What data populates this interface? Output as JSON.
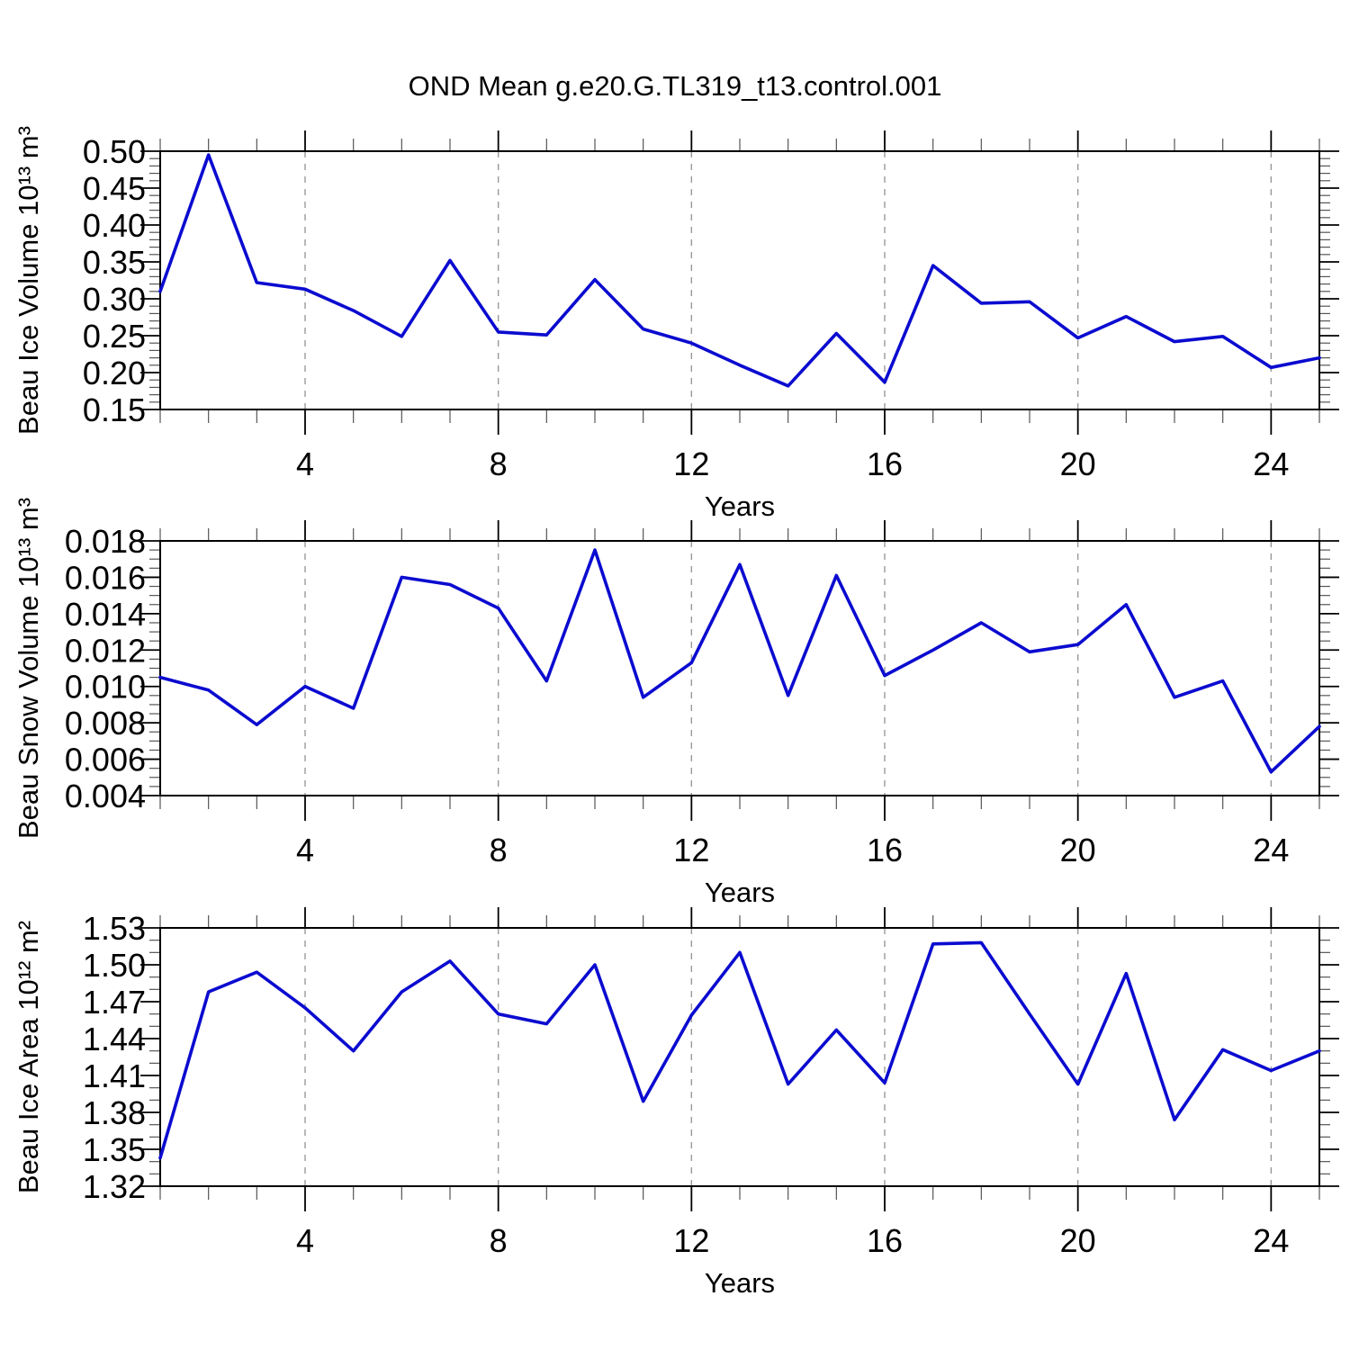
{
  "title": "OND Mean g.e20.G.TL319_t13.control.001",
  "chart_data": [
    {
      "type": "line",
      "title": "OND Mean g.e20.G.TL319_t13.control.001",
      "xlabel": "Years",
      "ylabel": "Beau Ice Volume 10¹³ m³",
      "x": [
        1,
        2,
        3,
        4,
        5,
        6,
        7,
        8,
        9,
        10,
        11,
        12,
        13,
        14,
        15,
        16,
        17,
        18,
        19,
        20,
        21,
        22,
        23,
        24,
        25
      ],
      "values": [
        0.31,
        0.495,
        0.322,
        0.313,
        0.284,
        0.249,
        0.352,
        0.255,
        0.251,
        0.326,
        0.259,
        0.24,
        0.21,
        0.182,
        0.253,
        0.187,
        0.345,
        0.294,
        0.296,
        0.247,
        0.276,
        0.242,
        0.249,
        0.207,
        0.22
      ],
      "xlim": [
        1,
        25
      ],
      "ylim": [
        0.15,
        0.5
      ],
      "xticks": [
        4,
        8,
        12,
        16,
        20,
        24
      ],
      "yticks": [
        "0.15",
        "0.20",
        "0.25",
        "0.30",
        "0.35",
        "0.40",
        "0.45",
        "0.50"
      ],
      "ymajor_step": 0.05,
      "yminor_step": 0.01,
      "ytick_decimals": 2,
      "grid": "vertical-dashed",
      "legend_position": "none",
      "line_color": "#0b0bd0"
    },
    {
      "type": "line",
      "title": "",
      "xlabel": "Years",
      "ylabel": "Beau Snow Volume 10¹³ m³",
      "x": [
        1,
        2,
        3,
        4,
        5,
        6,
        7,
        8,
        9,
        10,
        11,
        12,
        13,
        14,
        15,
        16,
        17,
        18,
        19,
        20,
        21,
        22,
        23,
        24,
        25
      ],
      "values": [
        0.0105,
        0.0098,
        0.0079,
        0.01,
        0.0088,
        0.016,
        0.0156,
        0.0143,
        0.0103,
        0.0175,
        0.0094,
        0.0113,
        0.0167,
        0.0095,
        0.0161,
        0.0106,
        0.012,
        0.0135,
        0.0119,
        0.0123,
        0.0145,
        0.0094,
        0.0103,
        0.0053,
        0.0078
      ],
      "xlim": [
        1,
        25
      ],
      "ylim": [
        0.004,
        0.018
      ],
      "xticks": [
        4,
        8,
        12,
        16,
        20,
        24
      ],
      "yticks": [
        "0.004",
        "0.006",
        "0.008",
        "0.010",
        "0.012",
        "0.014",
        "0.016",
        "0.018"
      ],
      "ymajor_step": 0.002,
      "yminor_step": 0.0005,
      "ytick_decimals": 3,
      "grid": "vertical-dashed",
      "legend_position": "none",
      "line_color": "#0b0bd0"
    },
    {
      "type": "line",
      "title": "",
      "xlabel": "Years",
      "ylabel": "Beau Ice Area 10¹² m²",
      "x": [
        1,
        2,
        3,
        4,
        5,
        6,
        7,
        8,
        9,
        10,
        11,
        12,
        13,
        14,
        15,
        16,
        17,
        18,
        19,
        20,
        21,
        22,
        23,
        24,
        25
      ],
      "values": [
        1.343,
        1.478,
        1.494,
        1.465,
        1.43,
        1.478,
        1.503,
        1.46,
        1.452,
        1.5,
        1.389,
        1.459,
        1.51,
        1.403,
        1.447,
        1.404,
        1.517,
        1.518,
        1.46,
        1.403,
        1.493,
        1.374,
        1.431,
        1.414,
        1.43
      ],
      "xlim": [
        1,
        25
      ],
      "ylim": [
        1.32,
        1.53
      ],
      "xticks": [
        4,
        8,
        12,
        16,
        20,
        24
      ],
      "yticks": [
        "1.32",
        "1.35",
        "1.38",
        "1.41",
        "1.44",
        "1.47",
        "1.50",
        "1.53"
      ],
      "ymajor_step": 0.03,
      "yminor_step": 0.01,
      "ytick_decimals": 2,
      "grid": "vertical-dashed",
      "legend_position": "none",
      "line_color": "#0b0bd0"
    }
  ],
  "colors": {
    "line": "#0b0bd0",
    "frame": "#000000",
    "grid": "#999999",
    "minor_tick": "#555555"
  }
}
